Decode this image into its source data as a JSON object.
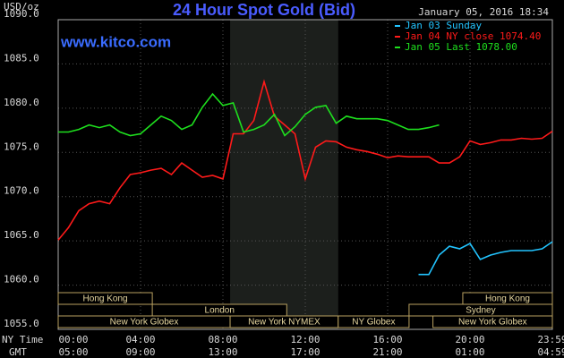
{
  "chart_data": {
    "type": "line",
    "title": "24 Hour Spot Gold (Bid)",
    "watermark": "www.kitco.com",
    "timestamp": "January 05, 2016 18:34",
    "ylabel": "USD/oz",
    "x_row_labels": [
      "NY Time",
      "GMT"
    ],
    "legend": "upper right",
    "grid": true,
    "x": [
      0,
      0.5,
      1,
      1.5,
      2,
      2.5,
      3,
      3.5,
      4,
      4.5,
      5,
      5.5,
      6,
      6.5,
      7,
      7.5,
      8,
      8.5,
      9,
      9.5,
      10,
      10.5,
      11,
      11.5,
      12,
      12.5,
      13,
      13.5,
      14,
      14.5,
      15,
      15.5,
      16,
      16.5,
      17,
      17.5,
      18,
      18.5,
      19,
      19.5,
      20,
      20.5,
      21,
      21.5,
      22,
      22.5,
      23,
      23.5,
      24
    ],
    "series": [
      {
        "name": "Jan 03 Sunday",
        "color": "#22c4ff",
        "values": [
          null,
          null,
          null,
          null,
          null,
          null,
          null,
          null,
          null,
          null,
          null,
          null,
          null,
          null,
          null,
          null,
          null,
          null,
          null,
          null,
          null,
          null,
          null,
          null,
          null,
          null,
          null,
          null,
          null,
          null,
          null,
          null,
          null,
          null,
          null,
          1061.2,
          1061.2,
          1063.4,
          1064.4,
          1064.1,
          1064.7,
          1062.9,
          1063.4,
          1063.7,
          1063.9,
          1063.9,
          1063.9,
          1064.1,
          1064.9
        ]
      },
      {
        "name": "Jan 04 NY close 1074.40",
        "color": "#ff1a1a",
        "values": [
          1065.1,
          1066.5,
          1068.4,
          1069.2,
          1069.5,
          1069.2,
          1071.0,
          1072.5,
          1072.7,
          1073.0,
          1073.2,
          1072.5,
          1073.8,
          1073.0,
          1072.2,
          1072.4,
          1072.0,
          1077.1,
          1077.1,
          1078.6,
          1083.0,
          1079.1,
          1078.1,
          1077.1,
          1072.0,
          1075.6,
          1076.3,
          1076.2,
          1075.6,
          1075.3,
          1075.1,
          1074.8,
          1074.4,
          1074.6,
          1074.5,
          1074.5,
          1074.5,
          1073.8,
          1073.8,
          1074.5,
          1076.3,
          1075.9,
          1076.1,
          1076.4,
          1076.4,
          1076.6,
          1076.5,
          1076.6,
          1077.4
        ]
      },
      {
        "name": "Jan 05 Last 1078.00",
        "color": "#1ee01e",
        "values": [
          1077.3,
          1077.3,
          1077.6,
          1078.1,
          1077.8,
          1078.1,
          1077.3,
          1076.9,
          1077.1,
          1078.1,
          1079.1,
          1078.6,
          1077.6,
          1078.1,
          1080.1,
          1081.6,
          1080.3,
          1080.6,
          1077.3,
          1077.6,
          1078.1,
          1079.3,
          1076.9,
          1077.9,
          1079.3,
          1080.1,
          1080.3,
          1078.3,
          1079.1,
          1078.8,
          1078.8,
          1078.8,
          1078.6,
          1078.1,
          1077.6,
          1077.6,
          1077.8,
          1078.1,
          null,
          null,
          null,
          null,
          null,
          null,
          null,
          null,
          null,
          null,
          null
        ]
      }
    ],
    "xlim": [
      0,
      24
    ],
    "xticks": [
      {
        "value": 0,
        "label": "00:00"
      },
      {
        "value": 4,
        "label": "04:00"
      },
      {
        "value": 8,
        "label": "08:00"
      },
      {
        "value": 12,
        "label": "12:00"
      },
      {
        "value": 16,
        "label": "16:00"
      },
      {
        "value": 20,
        "label": "20:00"
      },
      {
        "value": 24,
        "label": "23:59"
      }
    ],
    "gmt_tick_labels": [
      "05:00",
      "09:00",
      "13:00",
      "17:00",
      "21:00",
      "01:00",
      "04:59"
    ],
    "ylim": [
      1055,
      1090
    ],
    "yticks": [
      {
        "value": 1055,
        "label": "1055.0"
      },
      {
        "value": 1060,
        "label": "1060.0"
      },
      {
        "value": 1065,
        "label": "1065.0"
      },
      {
        "value": 1070,
        "label": "1070.0"
      },
      {
        "value": 1075,
        "label": "1075.0"
      },
      {
        "value": 1080,
        "label": "1080.0"
      },
      {
        "value": 1085,
        "label": "1085.0"
      },
      {
        "value": 1090,
        "label": "1090.0"
      }
    ],
    "highlight_x": [
      8.35,
      13.6
    ],
    "sessions": [
      [
        {
          "label": "Hong Kong",
          "start": 0,
          "end": 4.57
        },
        {
          "label": "Hong Kong",
          "start": 19.65,
          "end": 24
        }
      ],
      [
        {
          "label": "London",
          "start": 4.57,
          "end": 11.1
        },
        {
          "label": "Sydney",
          "start": 17.04,
          "end": 24
        }
      ],
      [
        {
          "label": "New York Globex",
          "start": 0,
          "end": 8.35
        },
        {
          "label": "New York NYMEX",
          "start": 8.35,
          "end": 13.6
        },
        {
          "label": "NY Globex",
          "start": 13.6,
          "end": 17.04
        },
        {
          "label": "New York Globex",
          "start": 18.2,
          "end": 24
        }
      ]
    ]
  }
}
